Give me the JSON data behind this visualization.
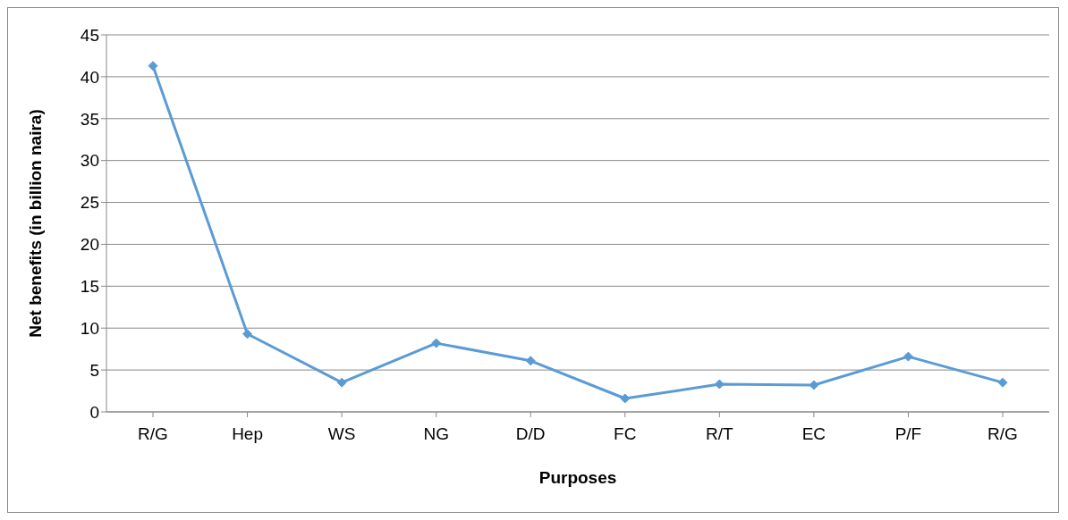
{
  "chart_data": {
    "type": "line",
    "xlabel": "Purposes",
    "ylabel": "Net benefits (in billion naira)",
    "categories": [
      "R/G",
      "Hep",
      "WS",
      "NG",
      "D/D",
      "FC",
      "R/T",
      "EC",
      "P/F",
      "R/G"
    ],
    "series": [
      {
        "color": "#5b9bd5",
        "values": [
          41.3,
          9.3,
          3.5,
          8.2,
          6.1,
          1.6,
          3.3,
          3.2,
          6.6,
          3.5
        ]
      }
    ],
    "ylim": [
      0,
      45
    ],
    "yticks": [
      0,
      5,
      10,
      15,
      20,
      25,
      30,
      35,
      40,
      45
    ],
    "grid": "y",
    "legend": false,
    "marker": "diamond",
    "line_style": "solid"
  }
}
